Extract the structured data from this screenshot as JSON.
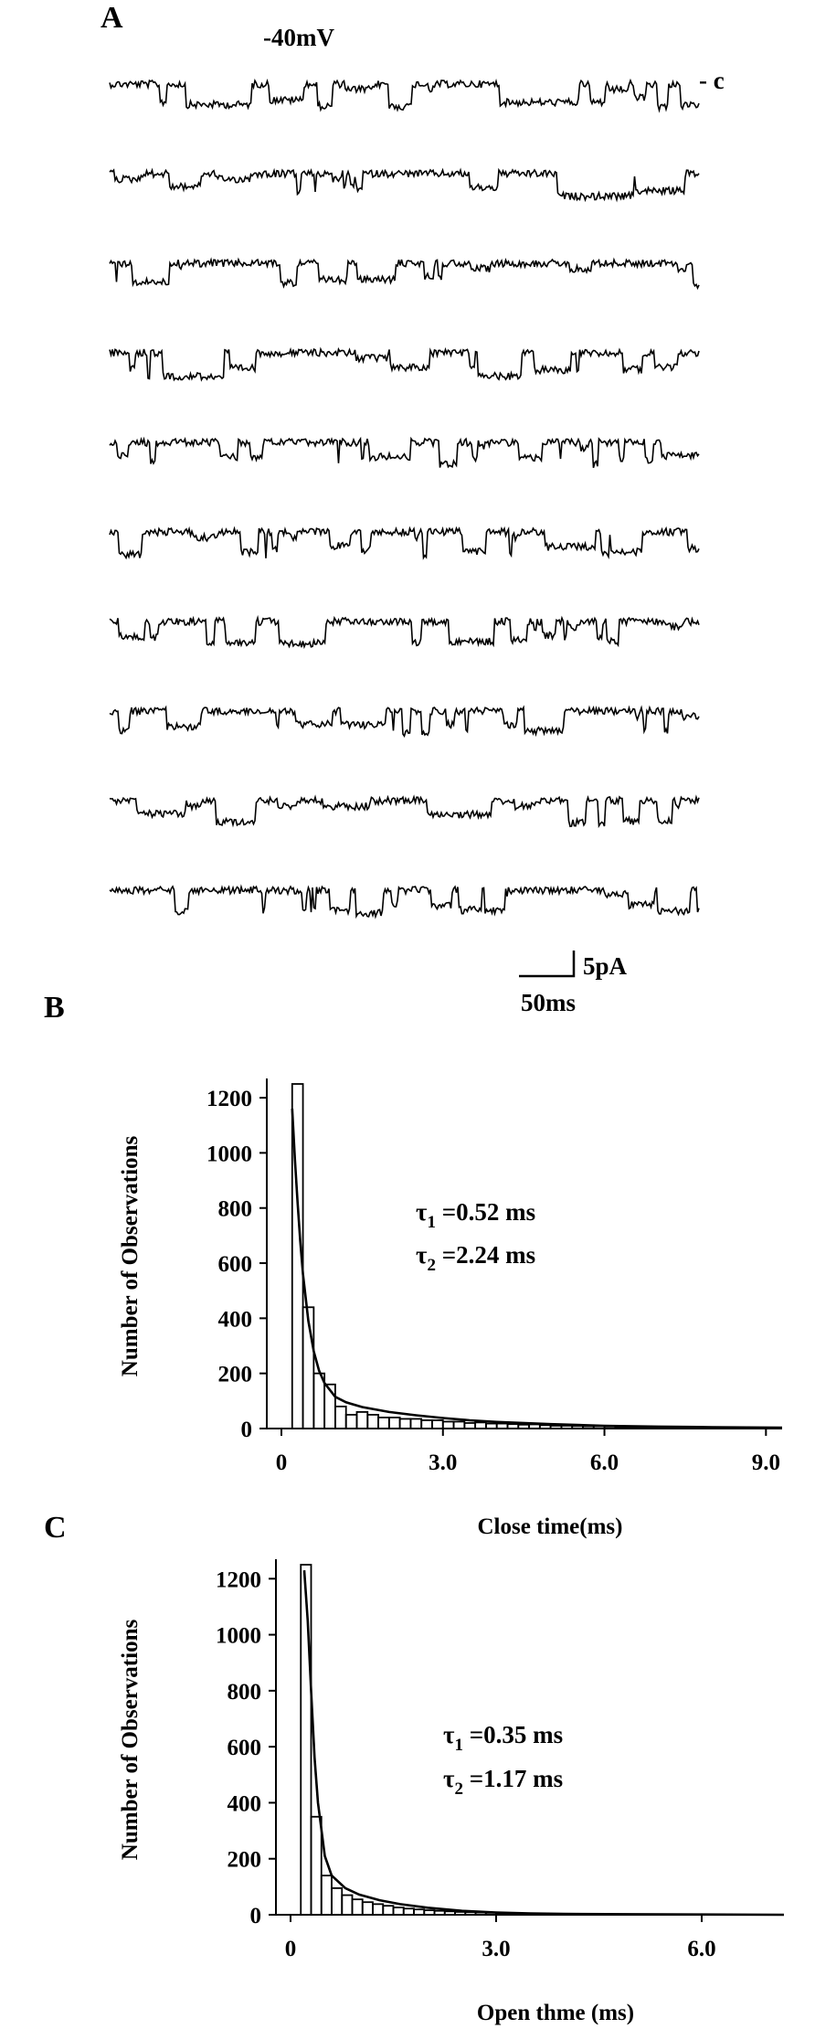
{
  "panel_a": {
    "label": "A",
    "voltage": "-40mV",
    "closed_marker": "- c",
    "trace_count": 10,
    "scale_current": "5pA",
    "scale_time": "50ms"
  },
  "chart_data": [
    {
      "type": "bar",
      "panel": "B",
      "xlabel": "Close time(ms)",
      "ylabel": "Number of Observations",
      "xlim": [
        0,
        9.3
      ],
      "ylim": [
        0,
        1250
      ],
      "xticks": [
        "0",
        "3.0",
        "6.0",
        "9.0"
      ],
      "yticks": [
        "0",
        "200",
        "400",
        "600",
        "800",
        "1000",
        "1200"
      ],
      "tau_1": "=0.52 ms",
      "tau_2": "=2.24 ms",
      "bin_width": 0.2,
      "bins_x": [
        0.1,
        0.3,
        0.5,
        0.7,
        0.9,
        1.1,
        1.3,
        1.5,
        1.7,
        1.9,
        2.1,
        2.3,
        2.5,
        2.7,
        2.9,
        3.1,
        3.3,
        3.5,
        3.7,
        3.9,
        4.1,
        4.3,
        4.5,
        4.7,
        4.9,
        5.1,
        5.3,
        5.5,
        5.7,
        5.9,
        6.1,
        6.3,
        6.5,
        6.7,
        6.9,
        7.1,
        7.3,
        7.5,
        7.7,
        7.9,
        8.1,
        8.3,
        8.5,
        8.7,
        8.9,
        9.1
      ],
      "counts": [
        0,
        1250,
        440,
        200,
        160,
        80,
        50,
        60,
        50,
        40,
        40,
        35,
        35,
        30,
        30,
        25,
        25,
        20,
        22,
        18,
        18,
        16,
        14,
        15,
        12,
        10,
        10,
        9,
        8,
        8,
        7,
        6,
        6,
        5,
        5,
        4,
        4,
        4,
        3,
        3,
        3,
        2,
        2,
        2,
        2,
        2
      ],
      "fit": {
        "x": [
          0.2,
          0.25,
          0.3,
          0.35,
          0.4,
          0.5,
          0.6,
          0.7,
          0.8,
          1.0,
          1.2,
          1.5,
          2.0,
          2.5,
          3.0,
          3.5,
          4.0,
          5.0,
          6.0,
          7.0,
          8.0,
          9.3
        ],
        "y": [
          1160,
          980,
          820,
          680,
          560,
          390,
          280,
          210,
          165,
          115,
          95,
          78,
          60,
          48,
          38,
          30,
          24,
          16,
          10,
          7,
          5,
          3
        ]
      }
    },
    {
      "type": "bar",
      "panel": "C",
      "xlabel": "Open thme (ms)",
      "ylabel": "Number of Observations",
      "xlim": [
        0,
        7.2
      ],
      "ylim": [
        0,
        1250
      ],
      "xticks": [
        "0",
        "3.0",
        "6.0"
      ],
      "yticks": [
        "0",
        "200",
        "400",
        "600",
        "800",
        "1000",
        "1200"
      ],
      "tau_1": "=0.35 ms",
      "tau_2": "=1.17 ms",
      "bin_width": 0.15,
      "bins_x": [
        0.075,
        0.225,
        0.375,
        0.525,
        0.675,
        0.825,
        0.975,
        1.125,
        1.275,
        1.425,
        1.575,
        1.725,
        1.875,
        2.025,
        2.175,
        2.325,
        2.475,
        2.625,
        2.775,
        2.925,
        3.075,
        3.225,
        3.375,
        3.525,
        3.675,
        3.825,
        3.975,
        4.125,
        4.275,
        4.425
      ],
      "counts": [
        0,
        1250,
        350,
        140,
        95,
        70,
        55,
        45,
        38,
        32,
        26,
        22,
        19,
        16,
        14,
        12,
        10,
        9,
        8,
        7,
        6,
        5,
        4,
        4,
        3,
        3,
        2,
        2,
        2,
        2
      ],
      "fit": {
        "x": [
          0.2,
          0.25,
          0.3,
          0.35,
          0.4,
          0.5,
          0.6,
          0.8,
          1.0,
          1.3,
          1.6,
          2.0,
          2.5,
          3.0,
          3.5,
          4.0,
          5.0,
          6.0,
          7.2
        ],
        "y": [
          1230,
          1050,
          800,
          560,
          400,
          210,
          140,
          95,
          72,
          52,
          38,
          25,
          14,
          8,
          5,
          3,
          2,
          1,
          0
        ]
      }
    }
  ]
}
